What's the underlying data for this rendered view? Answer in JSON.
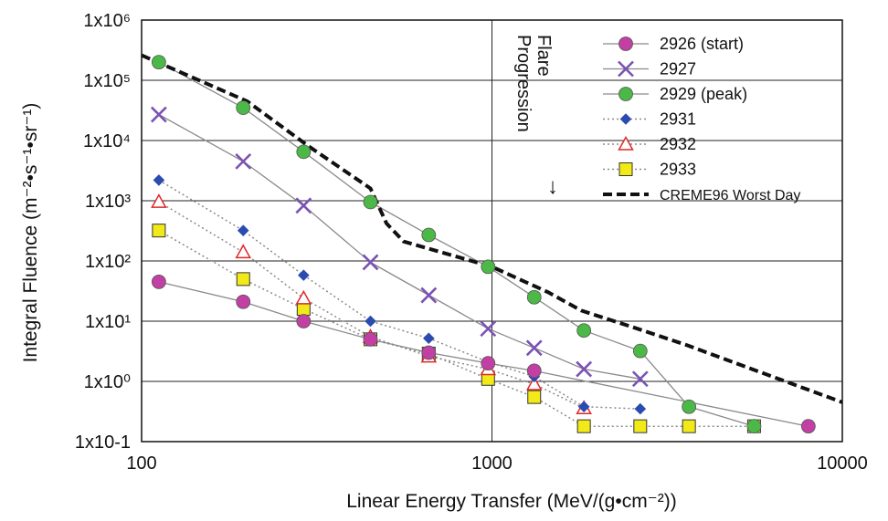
{
  "chart_data": {
    "type": "line",
    "xlabel": "Linear Energy Transfer (MeV/(g•cm⁻²))",
    "ylabel": "Integral Fluence (m⁻²•s⁻¹•sr⁻¹)",
    "x_scale": "log",
    "y_scale": "log",
    "xlim": [
      100,
      10000
    ],
    "ylim": [
      0.1,
      1000000
    ],
    "x_ticks": [
      "100",
      "1000",
      "10000"
    ],
    "y_ticks": [
      "1x10-1",
      "1x10⁰",
      "1x10¹",
      "1x10²",
      "1x10³",
      "1x10⁴",
      "1x10⁵",
      "1x10⁶"
    ],
    "grid": "horizontal lines at each decade, vertical line at 1000",
    "legend_position": "top-right",
    "annotation": {
      "text_line1": "Flare",
      "text_line2": "Progression",
      "arrow": "↓"
    },
    "colors": {
      "s2926": "#c23fa4",
      "s2927": "#7a52b3",
      "s2929": "#4cb847",
      "s2931": "#2a4bb0",
      "s2932": "#e02626",
      "s2933": "#f2ea18",
      "creme": "#111111",
      "connector": "#8a8a8a"
    },
    "series": [
      {
        "name": "2926 (start)",
        "marker": "circle",
        "line": "solid",
        "x": [
          112,
          195,
          290,
          450,
          660,
          975,
          1320,
          8000
        ],
        "y": [
          45,
          21,
          10,
          5,
          3,
          2,
          1.5,
          0.18
        ]
      },
      {
        "name": "2927",
        "marker": "x",
        "line": "solid",
        "x": [
          112,
          195,
          290,
          450,
          660,
          975,
          1320,
          1830,
          2650
        ],
        "y": [
          27000,
          4500,
          830,
          95,
          27,
          7.5,
          3.6,
          1.6,
          1.1
        ]
      },
      {
        "name": "2929 (peak)",
        "marker": "circle",
        "line": "solid",
        "x": [
          112,
          195,
          290,
          450,
          660,
          975,
          1320,
          1830,
          2650,
          3650,
          5600
        ],
        "y": [
          200000,
          35000,
          6500,
          950,
          270,
          80,
          25,
          7,
          3.2,
          0.38,
          0.18
        ]
      },
      {
        "name": "2931",
        "marker": "diamond",
        "line": "dotted",
        "x": [
          112,
          195,
          290,
          450,
          660,
          975,
          1320,
          1830,
          2650
        ],
        "y": [
          2200,
          320,
          58,
          10,
          5.2,
          2.1,
          1.2,
          0.38,
          0.35
        ]
      },
      {
        "name": "2932",
        "marker": "triangle",
        "line": "dotted",
        "x": [
          112,
          195,
          290,
          450,
          660,
          975,
          1320,
          1830
        ],
        "y": [
          960,
          140,
          24,
          5.5,
          2.6,
          1.6,
          0.9,
          0.36
        ]
      },
      {
        "name": "2933",
        "marker": "square",
        "line": "dotted",
        "x": [
          112,
          195,
          290,
          450,
          660,
          975,
          1320,
          1830,
          2650,
          3650,
          5600
        ],
        "y": [
          320,
          50,
          16,
          5,
          2.9,
          1.1,
          0.55,
          0.18,
          0.18,
          0.18,
          0.18
        ]
      },
      {
        "name": "CREME96 Worst Day",
        "marker": "none",
        "line": "dashed",
        "x": [
          100,
          200,
          300,
          450,
          500,
          560,
          1000,
          1450,
          1800,
          2600,
          3600,
          10000
        ],
        "y": [
          260000,
          45000,
          8000,
          1600,
          420,
          210,
          80,
          30,
          15,
          7.5,
          4,
          0.45
        ]
      }
    ]
  }
}
